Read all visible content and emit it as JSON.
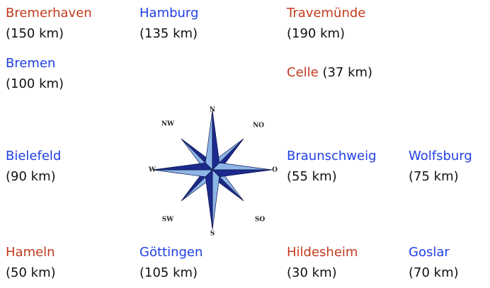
{
  "cities": [
    {
      "name": "Bremerhaven",
      "distance": "(150 km)",
      "color": "#c23b1e"
    },
    {
      "name": "Hamburg",
      "distance": "(135 km)",
      "color": "#1f3fe6"
    },
    {
      "name": "Travemünde",
      "distance": "(190 km)",
      "color": "#c23b1e"
    },
    {
      "name": "Bremen",
      "distance": "(100 km)",
      "color": "#1f3fe6"
    },
    {
      "name": "Celle",
      "distance": "(37 km)",
      "color": "#c23b1e"
    },
    {
      "name": "Bielefeld",
      "distance": "(90 km)",
      "color": "#1f3fe6"
    },
    {
      "name": "Braunschweig",
      "distance": "(55 km)",
      "color": "#1f3fe6"
    },
    {
      "name": "Wolfsburg",
      "distance": "(75 km)",
      "color": "#1f3fe6"
    },
    {
      "name": "Hameln",
      "distance": "(50 km)",
      "color": "#c23b1e"
    },
    {
      "name": "Göttingen",
      "distance": "(105 km)",
      "color": "#1f3fe6"
    },
    {
      "name": "Hildesheim",
      "distance": "(30 km)",
      "color": "#c23b1e"
    },
    {
      "name": "Goslar",
      "distance": "(70 km)",
      "color": "#1f3fe6"
    }
  ],
  "compass": {
    "labels": [
      "N",
      "NO",
      "O",
      "SO",
      "S",
      "SW",
      "W",
      "NW"
    ]
  }
}
